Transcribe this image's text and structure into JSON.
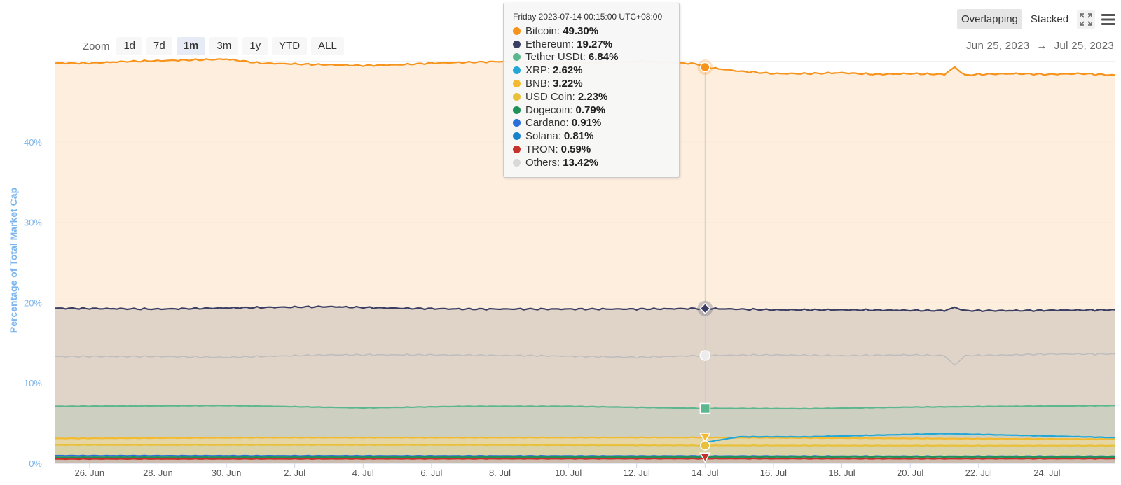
{
  "zoom": {
    "label": "Zoom",
    "buttons": [
      "1d",
      "7d",
      "1m",
      "3m",
      "1y",
      "YTD",
      "ALL"
    ],
    "active": "1m"
  },
  "modes": {
    "overlapping": "Overlapping",
    "stacked": "Stacked",
    "active": "overlapping"
  },
  "icons": {
    "fullscreen": "fullscreen-icon",
    "menu": "hamburger-menu-icon"
  },
  "range": {
    "from": "Jun 25, 2023",
    "arrow": "→",
    "to": "Jul 25, 2023"
  },
  "tooltip": {
    "date": "Friday 2023-07-14 00:15:00 UTC+08:00",
    "rows": [
      {
        "name": "Bitcoin",
        "value": "49.30%"
      },
      {
        "name": "Ethereum",
        "value": "19.27%"
      },
      {
        "name": "Tether USDt",
        "value": "6.84%"
      },
      {
        "name": "XRP",
        "value": "2.62%"
      },
      {
        "name": "BNB",
        "value": "3.22%"
      },
      {
        "name": "USD Coin",
        "value": "2.23%"
      },
      {
        "name": "Dogecoin",
        "value": "0.79%"
      },
      {
        "name": "Cardano",
        "value": "0.91%"
      },
      {
        "name": "Solana",
        "value": "0.81%"
      },
      {
        "name": "TRON",
        "value": "0.59%"
      },
      {
        "name": "Others",
        "value": "13.42%"
      }
    ]
  },
  "chart_data": {
    "type": "area",
    "ylabel": "Percentage of Total Market Cap",
    "y_ticks": [
      0,
      10,
      20,
      30,
      40
    ],
    "y_tick_labels": [
      "0%",
      "10%",
      "20%",
      "30%",
      "40%"
    ],
    "ylim": [
      0,
      50
    ],
    "x_range_days": [
      "2023-06-25",
      "2023-07-25"
    ],
    "x_ticks": [
      "26. Jun",
      "28. Jun",
      "30. Jun",
      "2. Jul",
      "4. Jul",
      "6. Jul",
      "8. Jul",
      "10. Jul",
      "12. Jul",
      "14. Jul",
      "16. Jul",
      "18. Jul",
      "20. Jul",
      "22. Jul",
      "24. Jul"
    ],
    "x_tick_days": [
      1,
      3,
      5,
      7,
      9,
      11,
      13,
      15,
      17,
      19,
      21,
      23,
      25,
      27,
      29
    ],
    "crosshair_day": 19,
    "grid": true,
    "series": [
      {
        "name": "Bitcoin",
        "color": "#f7931a",
        "fill": "#fdebd8",
        "values": [
          [
            0.0,
            49.8
          ],
          [
            1.0,
            49.8
          ],
          [
            2.0,
            50.0
          ],
          [
            3.0,
            50.1
          ],
          [
            4.0,
            50.2
          ],
          [
            5.0,
            50.3
          ],
          [
            6.0,
            49.8
          ],
          [
            7.0,
            49.7
          ],
          [
            8.0,
            49.6
          ],
          [
            9.0,
            49.5
          ],
          [
            10.0,
            49.6
          ],
          [
            11.0,
            49.8
          ],
          [
            12.0,
            49.9
          ],
          [
            13.0,
            50.0
          ],
          [
            14.0,
            49.9
          ],
          [
            15.0,
            49.8
          ],
          [
            16.0,
            49.9
          ],
          [
            17.0,
            50.0
          ],
          [
            18.0,
            49.9
          ],
          [
            18.8,
            49.7
          ],
          [
            19.0,
            49.3
          ],
          [
            20.0,
            48.8
          ],
          [
            21.0,
            48.5
          ],
          [
            22.0,
            48.5
          ],
          [
            23.0,
            48.6
          ],
          [
            24.0,
            48.4
          ],
          [
            25.0,
            48.5
          ],
          [
            26.0,
            48.4
          ],
          [
            26.3,
            49.3
          ],
          [
            26.6,
            48.3
          ],
          [
            27.0,
            48.4
          ],
          [
            28.0,
            48.5
          ],
          [
            29.0,
            48.4
          ],
          [
            30.0,
            48.5
          ],
          [
            31.0,
            48.3
          ]
        ]
      },
      {
        "name": "Ethereum",
        "color": "#3b3e63",
        "fill": "#dbcfc6",
        "values": [
          [
            0.0,
            19.3
          ],
          [
            3.0,
            19.2
          ],
          [
            6.0,
            19.4
          ],
          [
            8.0,
            19.5
          ],
          [
            10.0,
            19.3
          ],
          [
            12.0,
            19.2
          ],
          [
            15.0,
            19.2
          ],
          [
            17.0,
            19.2
          ],
          [
            19.0,
            19.27
          ],
          [
            21.0,
            19.1
          ],
          [
            23.0,
            19.1
          ],
          [
            26.0,
            19.0
          ],
          [
            26.3,
            19.4
          ],
          [
            26.6,
            19.0
          ],
          [
            28.0,
            19.0
          ],
          [
            31.0,
            19.1
          ]
        ]
      },
      {
        "name": "Others",
        "color": "#bdbdbd",
        "fill": null,
        "values": [
          [
            0.0,
            13.3
          ],
          [
            3.0,
            13.3
          ],
          [
            5.0,
            13.2
          ],
          [
            8.0,
            13.5
          ],
          [
            11.0,
            13.5
          ],
          [
            14.0,
            13.4
          ],
          [
            17.0,
            13.2
          ],
          [
            19.0,
            13.42
          ],
          [
            21.0,
            13.5
          ],
          [
            23.0,
            13.4
          ],
          [
            25.0,
            13.5
          ],
          [
            26.0,
            13.4
          ],
          [
            26.3,
            12.2
          ],
          [
            26.6,
            13.4
          ],
          [
            28.0,
            13.5
          ],
          [
            29.0,
            13.6
          ],
          [
            31.0,
            13.6
          ]
        ]
      },
      {
        "name": "Tether USDt",
        "color": "#5db78e",
        "fill": "#c9cfc0",
        "values": [
          [
            0.0,
            7.1
          ],
          [
            5.0,
            7.2
          ],
          [
            9.0,
            6.9
          ],
          [
            12.0,
            7.1
          ],
          [
            15.0,
            7.1
          ],
          [
            19.0,
            6.84
          ],
          [
            22.0,
            6.8
          ],
          [
            25.0,
            7.0
          ],
          [
            28.0,
            7.1
          ],
          [
            31.0,
            7.2
          ]
        ]
      },
      {
        "name": "BNB",
        "color": "#f3ba2f",
        "fill": "#e9d79e",
        "values": [
          [
            0.0,
            3.1
          ],
          [
            6.0,
            3.2
          ],
          [
            12.0,
            3.2
          ],
          [
            19.0,
            3.22
          ],
          [
            25.0,
            3.1
          ],
          [
            31.0,
            3.0
          ]
        ]
      },
      {
        "name": "XRP",
        "color": "#23a7d6",
        "fill": null,
        "values": [
          [
            19.0,
            2.62
          ],
          [
            20.0,
            3.3
          ],
          [
            22.0,
            3.3
          ],
          [
            24.0,
            3.5
          ],
          [
            26.0,
            3.7
          ],
          [
            28.0,
            3.5
          ],
          [
            31.0,
            3.2
          ]
        ]
      },
      {
        "name": "USD Coin",
        "color": "#e9c03a",
        "fill": "#d8d2a8",
        "values": [
          [
            0.0,
            2.3
          ],
          [
            6.0,
            2.3
          ],
          [
            12.0,
            2.3
          ],
          [
            19.0,
            2.23
          ],
          [
            25.0,
            2.2
          ],
          [
            31.0,
            2.2
          ]
        ]
      },
      {
        "name": "Cardano",
        "color": "#2a6fdb",
        "fill": null,
        "values": [
          [
            0.0,
            0.95
          ],
          [
            10.0,
            0.93
          ],
          [
            19.0,
            0.91
          ],
          [
            25.0,
            0.88
          ],
          [
            31.0,
            0.88
          ]
        ]
      },
      {
        "name": "Solana",
        "color": "#1982cc",
        "fill": null,
        "values": [
          [
            0.0,
            0.65
          ],
          [
            10.0,
            0.7
          ],
          [
            19.0,
            0.81
          ],
          [
            25.0,
            0.85
          ],
          [
            31.0,
            0.8
          ]
        ]
      },
      {
        "name": "Dogecoin",
        "color": "#20915a",
        "fill": null,
        "values": [
          [
            0.0,
            0.75
          ],
          [
            10.0,
            0.77
          ],
          [
            19.0,
            0.79
          ],
          [
            25.0,
            0.8
          ],
          [
            31.0,
            0.78
          ]
        ]
      },
      {
        "name": "TRON",
        "color": "#c6322b",
        "fill": "#c9b9b0",
        "values": [
          [
            0.0,
            0.55
          ],
          [
            10.0,
            0.57
          ],
          [
            19.0,
            0.59
          ],
          [
            25.0,
            0.58
          ],
          [
            31.0,
            0.6
          ]
        ]
      }
    ]
  }
}
